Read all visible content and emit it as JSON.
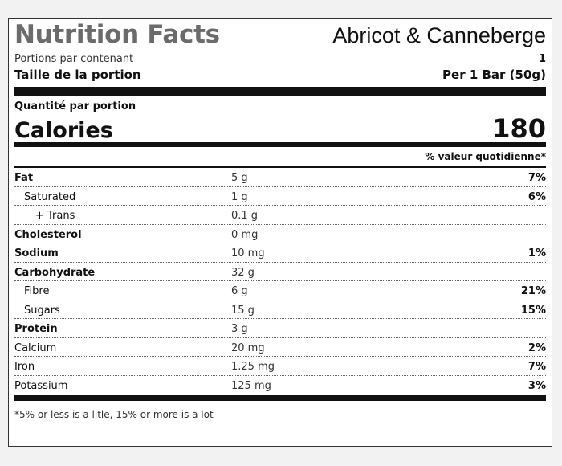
{
  "header": {
    "title": "Nutrition Facts",
    "product": "Abricot & Canneberge"
  },
  "servings": {
    "per_container_label": "Portions par contenant",
    "per_container_value": "1",
    "size_label": "Taille de la portion",
    "size_value": "Per 1 Bar (50g)"
  },
  "amount_label": "Quantité par portion",
  "calories": {
    "label": "Calories",
    "value": "180"
  },
  "dv_header": "% valeur quotidienne*",
  "nutrients": [
    {
      "name": "Fat",
      "amount": "5 g",
      "pct": "7%"
    },
    {
      "name": "Saturated",
      "amount": "1 g",
      "pct": "6%"
    },
    {
      "name": "+ Trans",
      "amount": "0.1 g",
      "pct": ""
    },
    {
      "name": "Cholesterol",
      "amount": "0 mg",
      "pct": ""
    },
    {
      "name": "Sodium",
      "amount": "10 mg",
      "pct": "1%"
    },
    {
      "name": "Carbohydrate",
      "amount": "32 g",
      "pct": ""
    },
    {
      "name": "Fibre",
      "amount": "6 g",
      "pct": "21%"
    },
    {
      "name": "Sugars",
      "amount": "15 g",
      "pct": "15%"
    },
    {
      "name": "Protein",
      "amount": "3 g",
      "pct": ""
    },
    {
      "name": "Calcium",
      "amount": "20 mg",
      "pct": "2%"
    },
    {
      "name": "Iron",
      "amount": "1.25 mg",
      "pct": "7%"
    },
    {
      "name": "Potassium",
      "amount": "125 mg",
      "pct": "3%"
    }
  ],
  "footnote": "*5% or less is a litle, 15% or more is a lot"
}
